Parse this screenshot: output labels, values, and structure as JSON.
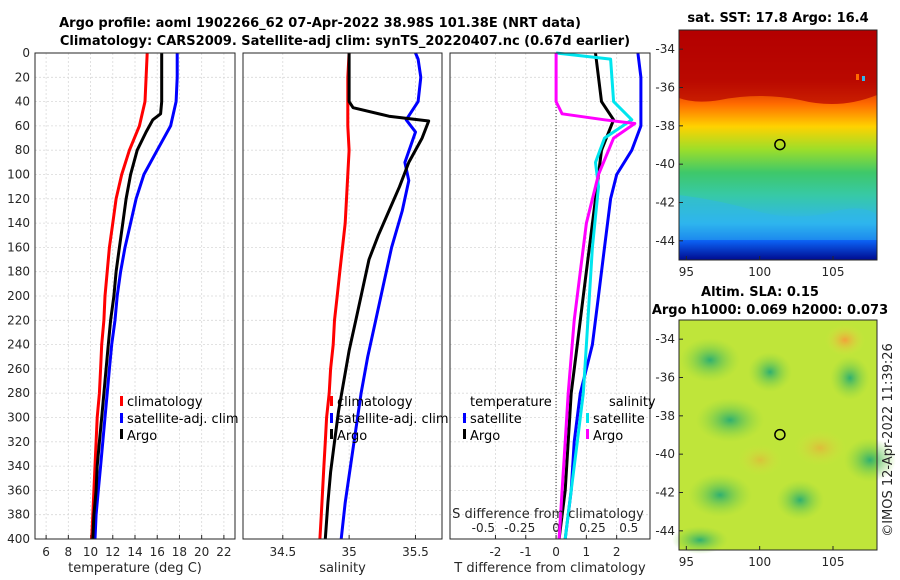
{
  "titles": {
    "line1": "Argo profile: aoml 1902266_62 07-Apr-2022 38.98S 101.38E (NRT data)",
    "line2": "Climatology: CARS2009. Satellite-adj clim: synTS_20220407.nc (0.67d earlier)"
  },
  "depth_ticks": [
    "0",
    "20",
    "40",
    "60",
    "80",
    "100",
    "120",
    "140",
    "160",
    "180",
    "200",
    "220",
    "240",
    "260",
    "280",
    "300",
    "320",
    "340",
    "360",
    "380",
    "400"
  ],
  "colors": {
    "climatology": "#ff0000",
    "satellite": "#0000ff",
    "argo": "#000000",
    "sat_salinity": "#00e5ee",
    "argo_salinity": "#ff00ff"
  },
  "chart_data": [
    {
      "type": "line",
      "name": "temperature",
      "xlabel": "temperature (deg C)",
      "ylabel": "depth",
      "xlim": [
        5,
        23
      ],
      "ylim": [
        400,
        0
      ],
      "xticks": [
        "6",
        "8",
        "10",
        "12",
        "14",
        "16",
        "18",
        "20",
        "22"
      ],
      "xtick_values": [
        6,
        8,
        10,
        12,
        14,
        16,
        18,
        20,
        22
      ],
      "legend": [
        "climatology",
        "satellite-adj. clim",
        "Argo"
      ],
      "series": [
        {
          "name": "climatology",
          "color": "#ff0000",
          "points": [
            [
              15.1,
              0
            ],
            [
              15.0,
              20
            ],
            [
              14.9,
              40
            ],
            [
              14.4,
              60
            ],
            [
              13.5,
              80
            ],
            [
              12.8,
              100
            ],
            [
              12.3,
              120
            ],
            [
              12.0,
              140
            ],
            [
              11.7,
              160
            ],
            [
              11.5,
              180
            ],
            [
              11.3,
              200
            ],
            [
              11.2,
              220
            ],
            [
              11.0,
              240
            ],
            [
              10.9,
              260
            ],
            [
              10.8,
              280
            ],
            [
              10.6,
              300
            ],
            [
              10.5,
              320
            ],
            [
              10.4,
              340
            ],
            [
              10.3,
              360
            ],
            [
              10.2,
              380
            ],
            [
              10.1,
              400
            ]
          ]
        },
        {
          "name": "satellite-adj. clim",
          "color": "#0000ff",
          "points": [
            [
              17.8,
              0
            ],
            [
              17.8,
              20
            ],
            [
              17.7,
              40
            ],
            [
              17.2,
              60
            ],
            [
              16.0,
              80
            ],
            [
              14.8,
              100
            ],
            [
              14.1,
              120
            ],
            [
              13.6,
              140
            ],
            [
              13.1,
              160
            ],
            [
              12.7,
              180
            ],
            [
              12.4,
              200
            ],
            [
              12.2,
              220
            ],
            [
              11.9,
              240
            ],
            [
              11.7,
              260
            ],
            [
              11.5,
              280
            ],
            [
              11.3,
              300
            ],
            [
              11.1,
              320
            ],
            [
              10.9,
              340
            ],
            [
              10.7,
              360
            ],
            [
              10.5,
              380
            ],
            [
              10.4,
              400
            ]
          ]
        },
        {
          "name": "Argo",
          "color": "#000000",
          "points": [
            [
              16.4,
              0
            ],
            [
              16.4,
              20
            ],
            [
              16.4,
              40
            ],
            [
              16.3,
              50
            ],
            [
              15.6,
              55
            ],
            [
              15.0,
              65
            ],
            [
              14.2,
              80
            ],
            [
              13.6,
              100
            ],
            [
              13.2,
              120
            ],
            [
              12.9,
              140
            ],
            [
              12.6,
              160
            ],
            [
              12.3,
              180
            ],
            [
              12.1,
              200
            ],
            [
              11.8,
              220
            ],
            [
              11.6,
              240
            ],
            [
              11.4,
              260
            ],
            [
              11.2,
              280
            ],
            [
              11.0,
              300
            ],
            [
              10.8,
              320
            ],
            [
              10.6,
              340
            ],
            [
              10.5,
              360
            ],
            [
              10.3,
              380
            ],
            [
              10.2,
              400
            ]
          ]
        }
      ]
    },
    {
      "type": "line",
      "name": "salinity",
      "xlabel": "salinity",
      "xlim": [
        34.2,
        35.7
      ],
      "ylim": [
        400,
        0
      ],
      "xticks": [
        "34.5",
        "35",
        "35.5"
      ],
      "xtick_values": [
        34.5,
        35.0,
        35.5
      ],
      "legend": [
        "climatology",
        "satellite-adj. clim",
        "Argo"
      ],
      "series": [
        {
          "name": "climatology",
          "color": "#ff0000",
          "points": [
            [
              35.0,
              0
            ],
            [
              34.99,
              20
            ],
            [
              34.99,
              40
            ],
            [
              34.99,
              60
            ],
            [
              35.0,
              80
            ],
            [
              34.99,
              100
            ],
            [
              34.98,
              120
            ],
            [
              34.97,
              140
            ],
            [
              34.95,
              160
            ],
            [
              34.93,
              180
            ],
            [
              34.91,
              200
            ],
            [
              34.89,
              220
            ],
            [
              34.88,
              240
            ],
            [
              34.86,
              260
            ],
            [
              34.85,
              280
            ],
            [
              34.83,
              300
            ],
            [
              34.82,
              320
            ],
            [
              34.81,
              340
            ],
            [
              34.8,
              360
            ],
            [
              34.79,
              380
            ],
            [
              34.78,
              400
            ]
          ]
        },
        {
          "name": "satellite-adj. clim",
          "color": "#0000ff",
          "points": [
            [
              35.5,
              0
            ],
            [
              35.52,
              5
            ],
            [
              35.54,
              20
            ],
            [
              35.52,
              40
            ],
            [
              35.43,
              55
            ],
            [
              35.5,
              65
            ],
            [
              35.42,
              90
            ],
            [
              35.45,
              105
            ],
            [
              35.4,
              130
            ],
            [
              35.32,
              160
            ],
            [
              35.26,
              190
            ],
            [
              35.2,
              220
            ],
            [
              35.14,
              250
            ],
            [
              35.09,
              280
            ],
            [
              35.05,
              310
            ],
            [
              35.01,
              340
            ],
            [
              34.97,
              370
            ],
            [
              34.94,
              400
            ]
          ]
        },
        {
          "name": "Argo",
          "color": "#000000",
          "points": [
            [
              35.0,
              0
            ],
            [
              35.0,
              20
            ],
            [
              35.0,
              40
            ],
            [
              35.03,
              45
            ],
            [
              35.3,
              52
            ],
            [
              35.6,
              56
            ],
            [
              35.55,
              70
            ],
            [
              35.45,
              90
            ],
            [
              35.38,
              110
            ],
            [
              35.3,
              130
            ],
            [
              35.22,
              150
            ],
            [
              35.15,
              170
            ],
            [
              35.1,
              195
            ],
            [
              35.05,
              220
            ],
            [
              35.0,
              245
            ],
            [
              34.96,
              270
            ],
            [
              34.92,
              295
            ],
            [
              34.89,
              320
            ],
            [
              34.86,
              345
            ],
            [
              34.84,
              370
            ],
            [
              34.82,
              400
            ]
          ]
        }
      ]
    },
    {
      "type": "line",
      "name": "difference",
      "xlabel": "T difference from climatology",
      "xlabel_top": "S difference from climatology",
      "xlim": [
        -3.5,
        3.1
      ],
      "ylim": [
        400,
        0
      ],
      "xticks": [
        "-2",
        "-1",
        "0",
        "1",
        "2"
      ],
      "xtick_values": [
        -2,
        -1,
        0,
        1,
        2
      ],
      "s_xticks": [
        "-0.5",
        "-0.25",
        "0",
        "0.25",
        "0.5"
      ],
      "s_xtick_values": [
        -0.5,
        -0.25,
        0,
        0.25,
        0.5
      ],
      "legend_temperature_title": "temperature",
      "legend_temperature": [
        "satellite",
        "Argo"
      ],
      "legend_salinity_title": "salinity",
      "legend_salinity": [
        "satellite",
        "Argo"
      ],
      "series": [
        {
          "name": "T satellite",
          "color": "#0000ff",
          "points": [
            [
              2.7,
              0
            ],
            [
              2.8,
              20
            ],
            [
              2.8,
              40
            ],
            [
              2.8,
              60
            ],
            [
              2.5,
              80
            ],
            [
              2.0,
              100
            ],
            [
              1.8,
              120
            ],
            [
              1.6,
              160
            ],
            [
              1.4,
              200
            ],
            [
              1.2,
              240
            ],
            [
              0.8,
              280
            ],
            [
              0.6,
              320
            ],
            [
              0.5,
              360
            ],
            [
              0.3,
              400
            ]
          ]
        },
        {
          "name": "T Argo",
          "color": "#000000",
          "points": [
            [
              1.3,
              0
            ],
            [
              1.4,
              20
            ],
            [
              1.5,
              40
            ],
            [
              1.9,
              55
            ],
            [
              1.5,
              80
            ],
            [
              1.3,
              120
            ],
            [
              1.1,
              160
            ],
            [
              0.9,
              200
            ],
            [
              0.7,
              240
            ],
            [
              0.5,
              280
            ],
            [
              0.4,
              320
            ],
            [
              0.3,
              360
            ],
            [
              0.1,
              400
            ]
          ]
        },
        {
          "name": "S satellite",
          "color": "#00e5ee",
          "points": [
            [
              0.0,
              0
            ],
            [
              1.8,
              5
            ],
            [
              1.9,
              40
            ],
            [
              2.5,
              55
            ],
            [
              1.6,
              70
            ],
            [
              1.3,
              90
            ],
            [
              1.4,
              110
            ],
            [
              1.2,
              160
            ],
            [
              1.1,
              200
            ],
            [
              1.0,
              240
            ],
            [
              0.9,
              280
            ],
            [
              0.7,
              320
            ],
            [
              0.5,
              360
            ],
            [
              0.3,
              400
            ]
          ]
        },
        {
          "name": "S Argo",
          "color": "#ff00ff",
          "points": [
            [
              0.0,
              0
            ],
            [
              0.0,
              20
            ],
            [
              0.0,
              40
            ],
            [
              0.2,
              50
            ],
            [
              1.6,
              55
            ],
            [
              2.6,
              58
            ],
            [
              1.9,
              70
            ],
            [
              1.4,
              100
            ],
            [
              1.0,
              140
            ],
            [
              0.8,
              180
            ],
            [
              0.6,
              220
            ],
            [
              0.4,
              280
            ],
            [
              0.3,
              320
            ],
            [
              0.2,
              360
            ],
            [
              0.1,
              400
            ]
          ]
        }
      ]
    }
  ],
  "sst_map": {
    "title": "sat. SST: 17.8 Argo: 16.4",
    "xticks": [
      "95",
      "100",
      "105"
    ],
    "xtick_values": [
      95,
      100,
      105
    ],
    "yticks": [
      "-34",
      "-36",
      "-38",
      "-40",
      "-42",
      "-44"
    ],
    "ytick_values": [
      -34,
      -36,
      -38,
      -40,
      -42,
      -44
    ],
    "lon_range": [
      94.5,
      108
    ],
    "lat_range": [
      -45,
      -33
    ],
    "marker": {
      "lon": 101.38,
      "lat": -38.98
    }
  },
  "sla_map": {
    "title1": "Altim. SLA: 0.15",
    "title2": "Argo h1000: 0.069 h2000: 0.073",
    "xticks": [
      "95",
      "100",
      "105"
    ],
    "xtick_values": [
      95,
      100,
      105
    ],
    "yticks": [
      "-34",
      "-36",
      "-38",
      "-40",
      "-42",
      "-44"
    ],
    "ytick_values": [
      -34,
      -36,
      -38,
      -40,
      -42,
      -44
    ],
    "lon_range": [
      94.5,
      108
    ],
    "lat_range": [
      -45,
      -33
    ],
    "marker": {
      "lon": 101.38,
      "lat": -38.98
    }
  },
  "credit": "©IMOS 12-Apr-2022 11:39:26"
}
